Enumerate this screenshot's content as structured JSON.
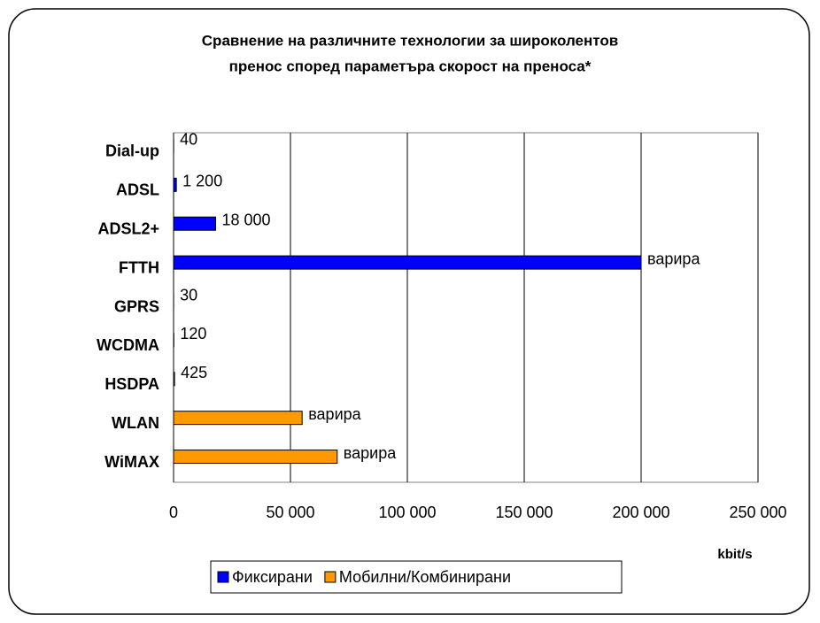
{
  "chart_data": {
    "type": "barh",
    "title": [
      "Сравнение на различните технологии за широколентов",
      "пренос според параметъра скорост на преноса*"
    ],
    "categories": [
      "Dial-up",
      "ADSL",
      "ADSL2+",
      "FTTH",
      "GPRS",
      "WCDMA",
      "HSDPA",
      "WLAN",
      "WiMAX"
    ],
    "series": [
      {
        "name": "Фиксирани",
        "color": "#0000ff",
        "values": [
          40,
          1200,
          18000,
          200000,
          null,
          null,
          null,
          null,
          null
        ],
        "value_labels": [
          "40",
          "1 200",
          "18 000",
          "варира",
          null,
          null,
          null,
          null,
          null
        ]
      },
      {
        "name": "Мобилни/Комбинирани",
        "color": "#ff9900",
        "values": [
          null,
          null,
          null,
          null,
          30,
          120,
          425,
          55000,
          70000
        ],
        "value_labels": [
          null,
          null,
          null,
          null,
          "30",
          "120",
          "425",
          "варира",
          "варира"
        ]
      }
    ],
    "xlim": [
      0,
      250000
    ],
    "xticks": [
      0,
      {
        "value": 50000,
        "label": "50 000"
      },
      {
        "value": 100000,
        "label": "100 000"
      },
      {
        "value": 150000,
        "label": "150 000"
      },
      {
        "value": 200000,
        "label": "200 000"
      },
      {
        "value": 250000,
        "label": "250 000"
      }
    ],
    "xlabel": "kbit/s",
    "grid": true,
    "legend": "bottom"
  }
}
